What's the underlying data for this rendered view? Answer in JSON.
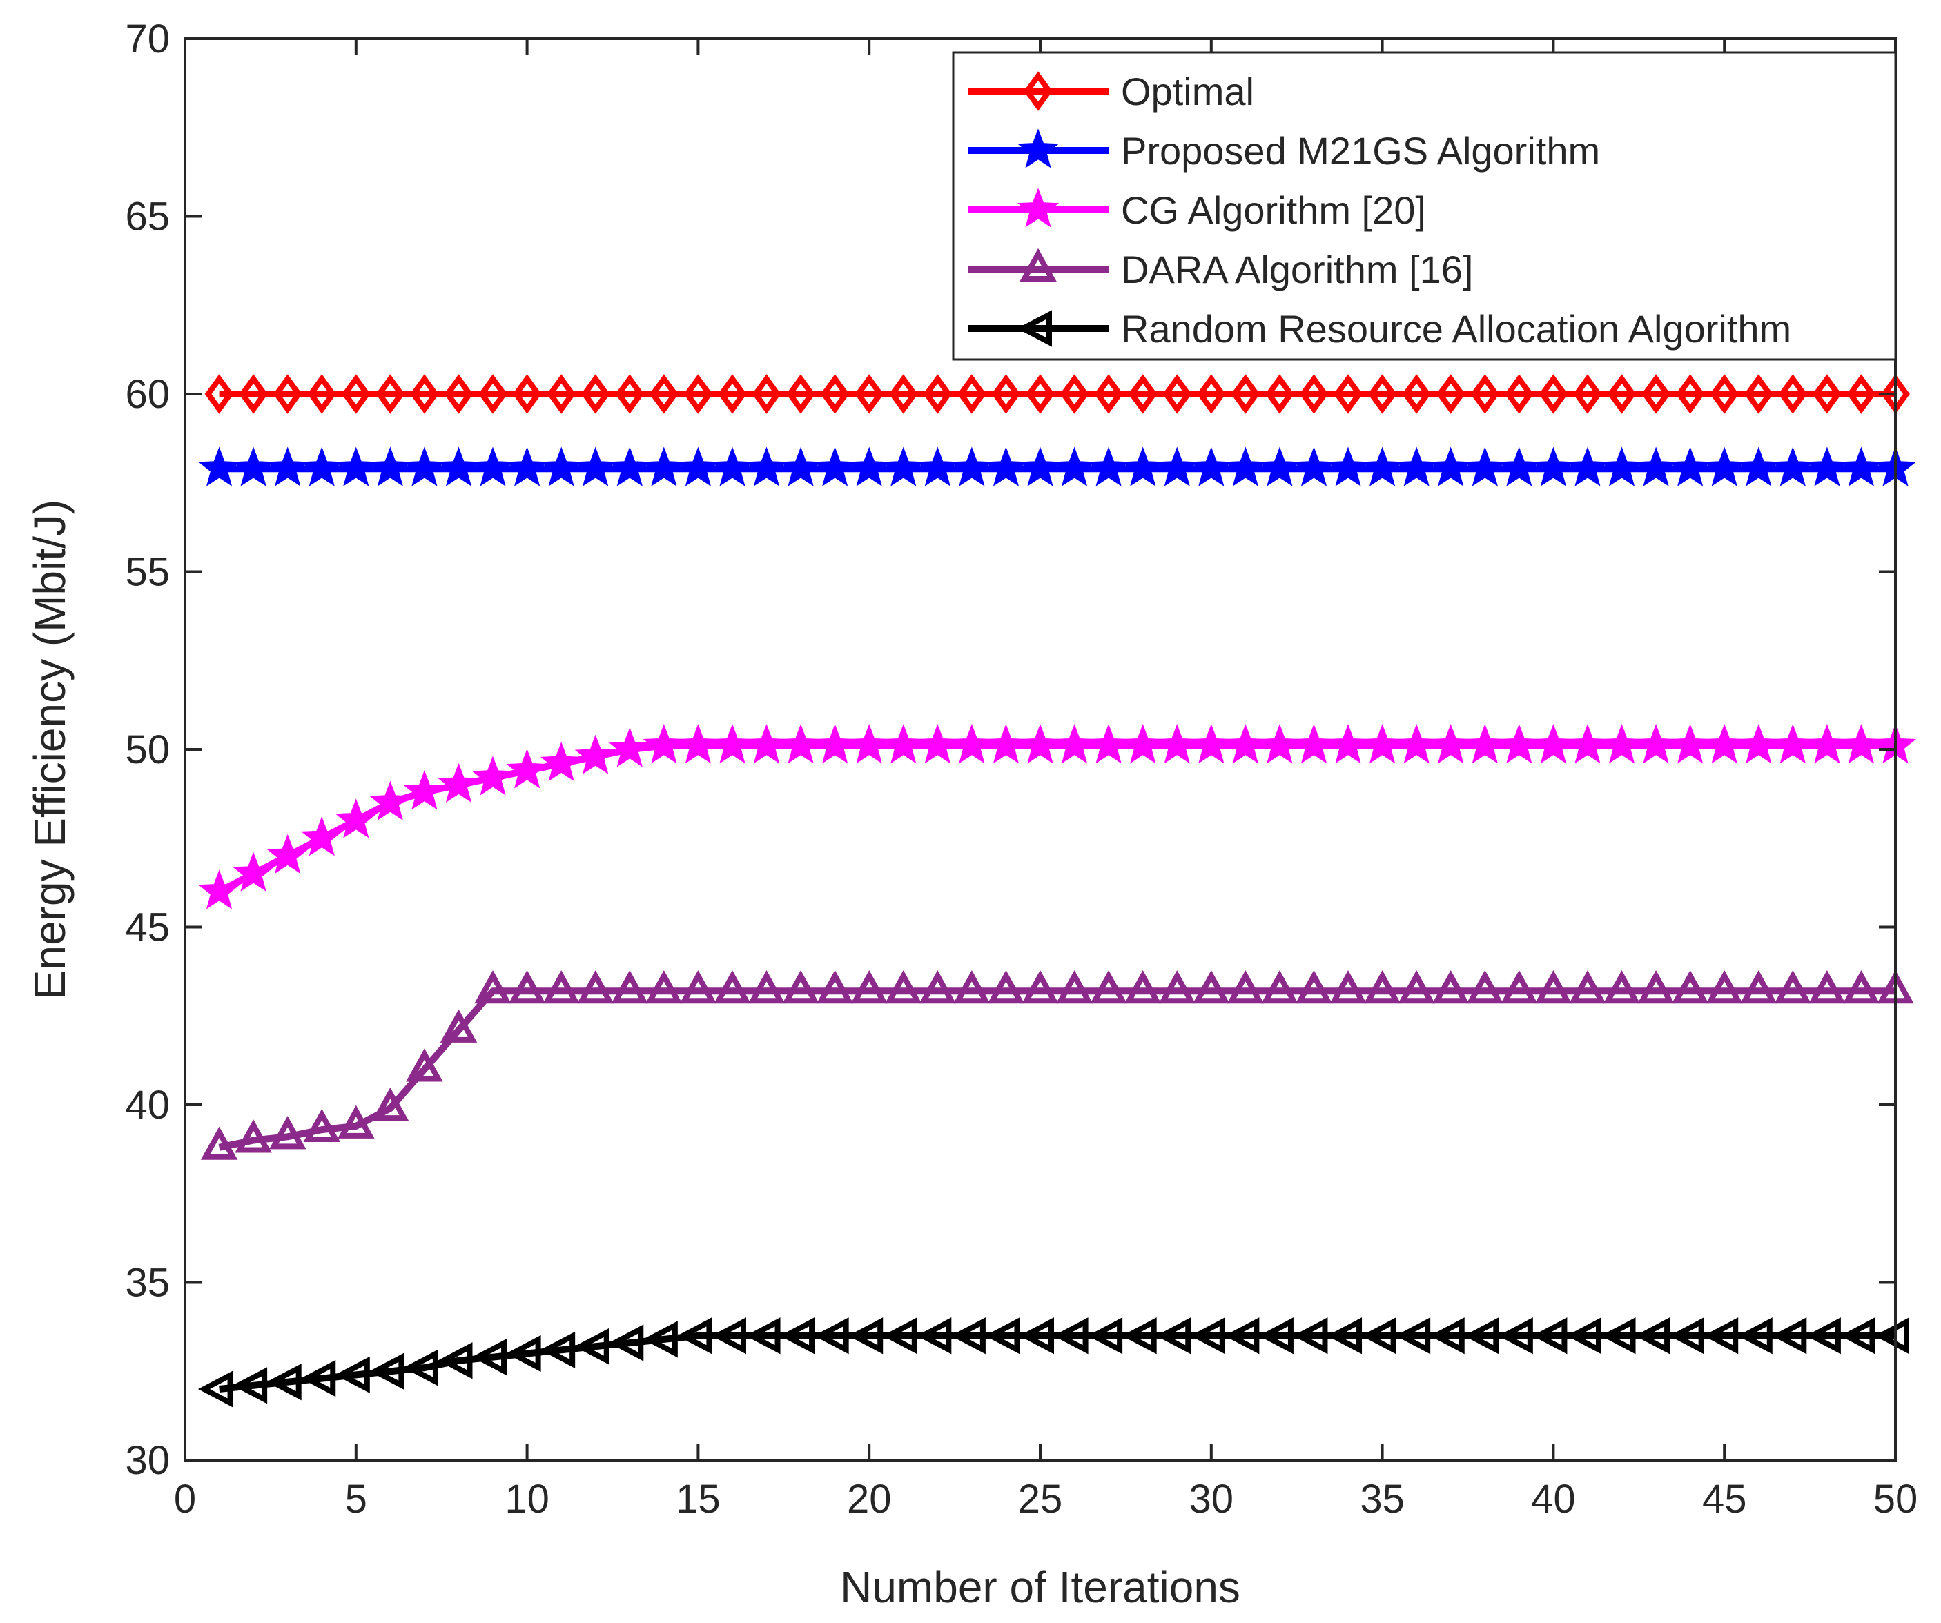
{
  "chart_data": {
    "type": "line",
    "title": "",
    "xlabel": "Number of Iterations",
    "ylabel": "Energy Efficiency (Mbit/J)",
    "xlim": [
      0,
      50
    ],
    "ylim": [
      30,
      70
    ],
    "xticks": [
      0,
      5,
      10,
      15,
      20,
      25,
      30,
      35,
      40,
      45,
      50
    ],
    "yticks": [
      30,
      35,
      40,
      45,
      50,
      55,
      60,
      65,
      70
    ],
    "grid": false,
    "legend_position": "top-right",
    "x": [
      1,
      2,
      3,
      4,
      5,
      6,
      7,
      8,
      9,
      10,
      11,
      12,
      13,
      14,
      15,
      16,
      17,
      18,
      19,
      20,
      21,
      22,
      23,
      24,
      25,
      26,
      27,
      28,
      29,
      30,
      31,
      32,
      33,
      34,
      35,
      36,
      37,
      38,
      39,
      40,
      41,
      42,
      43,
      44,
      45,
      46,
      47,
      48,
      49,
      50
    ],
    "series": [
      {
        "name": "Optimal",
        "color": "#ff0000",
        "marker": "diamond",
        "values": [
          60,
          60,
          60,
          60,
          60,
          60,
          60,
          60,
          60,
          60,
          60,
          60,
          60,
          60,
          60,
          60,
          60,
          60,
          60,
          60,
          60,
          60,
          60,
          60,
          60,
          60,
          60,
          60,
          60,
          60,
          60,
          60,
          60,
          60,
          60,
          60,
          60,
          60,
          60,
          60,
          60,
          60,
          60,
          60,
          60,
          60,
          60,
          60,
          60,
          60
        ]
      },
      {
        "name": "Proposed M21GS Algorithm",
        "color": "#0000ff",
        "marker": "star",
        "values": [
          57.9,
          57.9,
          57.9,
          57.9,
          57.9,
          57.9,
          57.9,
          57.9,
          57.9,
          57.9,
          57.9,
          57.9,
          57.9,
          57.9,
          57.9,
          57.9,
          57.9,
          57.9,
          57.9,
          57.9,
          57.9,
          57.9,
          57.9,
          57.9,
          57.9,
          57.9,
          57.9,
          57.9,
          57.9,
          57.9,
          57.9,
          57.9,
          57.9,
          57.9,
          57.9,
          57.9,
          57.9,
          57.9,
          57.9,
          57.9,
          57.9,
          57.9,
          57.9,
          57.9,
          57.9,
          57.9,
          57.9,
          57.9,
          57.9,
          57.9
        ]
      },
      {
        "name": "CG Algorithm [20]",
        "color": "#ff00ff",
        "marker": "star",
        "values": [
          46.0,
          46.5,
          47.0,
          47.5,
          48.0,
          48.5,
          48.8,
          49.0,
          49.2,
          49.4,
          49.6,
          49.8,
          50.0,
          50.1,
          50.1,
          50.1,
          50.1,
          50.1,
          50.1,
          50.1,
          50.1,
          50.1,
          50.1,
          50.1,
          50.1,
          50.1,
          50.1,
          50.1,
          50.1,
          50.1,
          50.1,
          50.1,
          50.1,
          50.1,
          50.1,
          50.1,
          50.1,
          50.1,
          50.1,
          50.1,
          50.1,
          50.1,
          50.1,
          50.1,
          50.1,
          50.1,
          50.1,
          50.1,
          50.1,
          50.1
        ]
      },
      {
        "name": "DARA Algorithm [16]",
        "color": "#8b2a8b",
        "marker": "triangle-up",
        "values": [
          38.8,
          39.0,
          39.1,
          39.3,
          39.4,
          39.9,
          41.0,
          42.1,
          43.2,
          43.2,
          43.2,
          43.2,
          43.2,
          43.2,
          43.2,
          43.2,
          43.2,
          43.2,
          43.2,
          43.2,
          43.2,
          43.2,
          43.2,
          43.2,
          43.2,
          43.2,
          43.2,
          43.2,
          43.2,
          43.2,
          43.2,
          43.2,
          43.2,
          43.2,
          43.2,
          43.2,
          43.2,
          43.2,
          43.2,
          43.2,
          43.2,
          43.2,
          43.2,
          43.2,
          43.2,
          43.2,
          43.2,
          43.2,
          43.2,
          43.2
        ]
      },
      {
        "name": "Random Resource Allocation Algorithm",
        "color": "#000000",
        "marker": "triangle-left",
        "values": [
          32.0,
          32.1,
          32.2,
          32.3,
          32.4,
          32.5,
          32.6,
          32.8,
          32.9,
          33.0,
          33.1,
          33.2,
          33.3,
          33.4,
          33.5,
          33.5,
          33.5,
          33.5,
          33.5,
          33.5,
          33.5,
          33.5,
          33.5,
          33.5,
          33.5,
          33.5,
          33.5,
          33.5,
          33.5,
          33.5,
          33.5,
          33.5,
          33.5,
          33.5,
          33.5,
          33.5,
          33.5,
          33.5,
          33.5,
          33.5,
          33.5,
          33.5,
          33.5,
          33.5,
          33.5,
          33.5,
          33.5,
          33.5,
          33.5,
          33.5
        ]
      }
    ]
  }
}
